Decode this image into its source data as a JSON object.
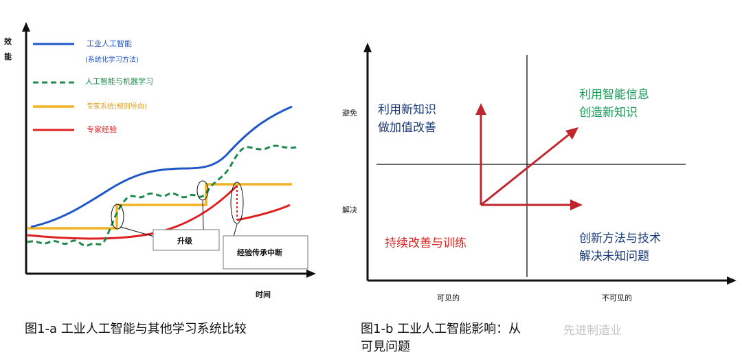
{
  "chart_left": {
    "type": "line",
    "ylabel_chars": [
      "效",
      "能"
    ],
    "xlabel": "时间",
    "legend": [
      {
        "label": "工业人工智能",
        "sublabel": "(系统化学习方法)",
        "color": "#1f57c8",
        "dash": false
      },
      {
        "label": "人工智能与机器学习",
        "sublabel": "",
        "color": "#1f8a4c",
        "dash": true
      },
      {
        "label": "专家系统(规则导向)",
        "sublabel": "",
        "color": "#f0b323",
        "dash": false
      },
      {
        "label": "专家经验",
        "sublabel": "",
        "color": "#e02020",
        "dash": false
      }
    ],
    "callouts": [
      "升级",
      "经验传承中断"
    ]
  },
  "chart_right": {
    "type": "quadrant",
    "y_ticks": [
      "避免",
      "解决"
    ],
    "x_ticks": [
      "可见的",
      "不可见的"
    ],
    "quadrants": {
      "top_left": {
        "lines": [
          "利用新知识",
          "做加值改善"
        ],
        "color": "#1a3a7a"
      },
      "top_right": {
        "lines": [
          "利用智能信息",
          "创造新知识"
        ],
        "color": "#159a55"
      },
      "bottom_left": {
        "lines": [
          "持续改善与训练"
        ],
        "color": "#e02020"
      },
      "bottom_right": {
        "lines": [
          "创新方法与技术",
          "解决未知问题"
        ],
        "color": "#1a3a7a"
      }
    },
    "arrow_color": "#c0262d"
  },
  "captions": {
    "left": "图1-a 工业人工智能与其他学习系统比较",
    "right_line1": "图1-b 工业人工智能影响：从",
    "right_line2": "可見问题"
  },
  "watermark": "先进制造业"
}
